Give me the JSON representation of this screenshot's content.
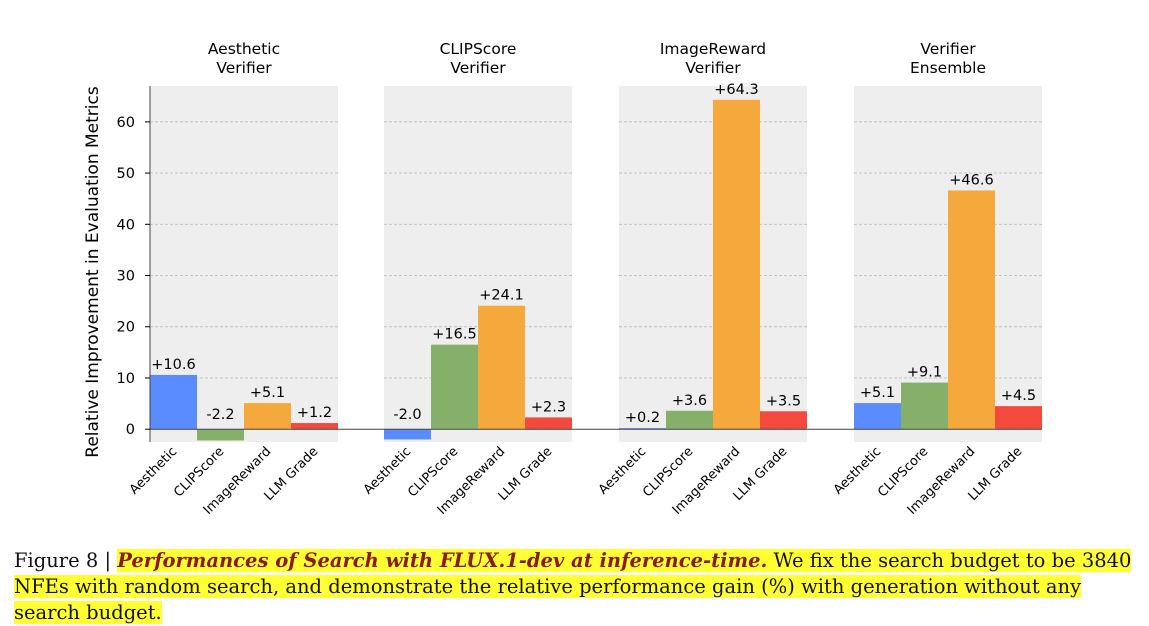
{
  "chart_data": {
    "type": "bar",
    "ylabel": "Relative Improvement in Evaluation Metrics",
    "ylim": [
      -2.5,
      67
    ],
    "yticks": [
      0,
      10,
      20,
      30,
      40,
      50,
      60
    ],
    "grid": true,
    "categories": [
      "Aesthetic",
      "CLIPScore",
      "ImageReward",
      "LLM Grade"
    ],
    "colors": [
      "#5b8cff",
      "#86b06a",
      "#f5a93c",
      "#f44a3e"
    ],
    "panels": [
      {
        "title_line1": "Aesthetic",
        "title_line2": "Verifier",
        "values": [
          10.6,
          -2.2,
          5.1,
          1.2
        ],
        "labels": [
          "+10.6",
          "-2.2",
          "+5.1",
          "+1.2"
        ]
      },
      {
        "title_line1": "CLIPScore",
        "title_line2": "Verifier",
        "values": [
          -2.0,
          16.5,
          24.1,
          2.3
        ],
        "labels": [
          "-2.0",
          "+16.5",
          "+24.1",
          "+2.3"
        ]
      },
      {
        "title_line1": "ImageReward",
        "title_line2": "Verifier",
        "values": [
          0.2,
          3.6,
          64.3,
          3.5
        ],
        "labels": [
          "+0.2",
          "+3.6",
          "+64.3",
          "+3.5"
        ]
      },
      {
        "title_line1": "Verifier",
        "title_line2": "Ensemble",
        "values": [
          5.1,
          9.1,
          46.6,
          4.5
        ],
        "labels": [
          "+5.1",
          "+9.1",
          "+46.6",
          "+4.5"
        ]
      }
    ]
  },
  "caption": {
    "figure_label": "Figure 8 |",
    "title": "Performances of Search with FLUX.1-dev at inference-time.",
    "text": "We fix the search budget to be 3840 NFEs with random search, and demonstrate the relative performance gain (%) with generation without any search budget."
  }
}
